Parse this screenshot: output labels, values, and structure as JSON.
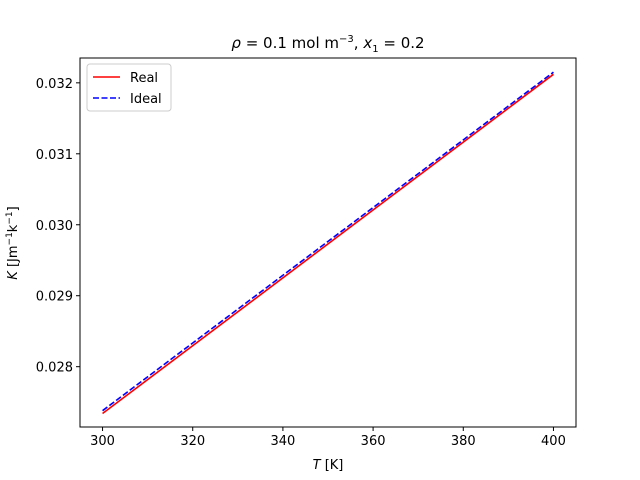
{
  "chart_data": {
    "type": "line",
    "title": "ρ = 0.1 mol m⁻³, x₁ = 0.2",
    "xlabel": "T [K]",
    "ylabel": "K [Jm⁻¹k⁻¹]",
    "xlim": [
      295,
      405
    ],
    "ylim": [
      0.02715,
      0.03235
    ],
    "xticks": [
      300,
      320,
      340,
      360,
      380,
      400
    ],
    "xtick_labels": [
      "300",
      "320",
      "340",
      "360",
      "380",
      "400"
    ],
    "yticks": [
      0.028,
      0.029,
      0.03,
      0.031,
      0.032
    ],
    "ytick_labels": [
      "0.028",
      "0.029",
      "0.030",
      "0.031",
      "0.032"
    ],
    "grid": false,
    "legend_position": "top-left",
    "series": [
      {
        "name": "Real",
        "color": "#ff0000",
        "linestyle": "solid",
        "x": [
          300,
          400
        ],
        "y": [
          0.02734,
          0.03212
        ]
      },
      {
        "name": "Ideal",
        "color": "#0000ff",
        "linestyle": "dashed",
        "x": [
          300,
          400
        ],
        "y": [
          0.02738,
          0.03215
        ]
      }
    ]
  }
}
